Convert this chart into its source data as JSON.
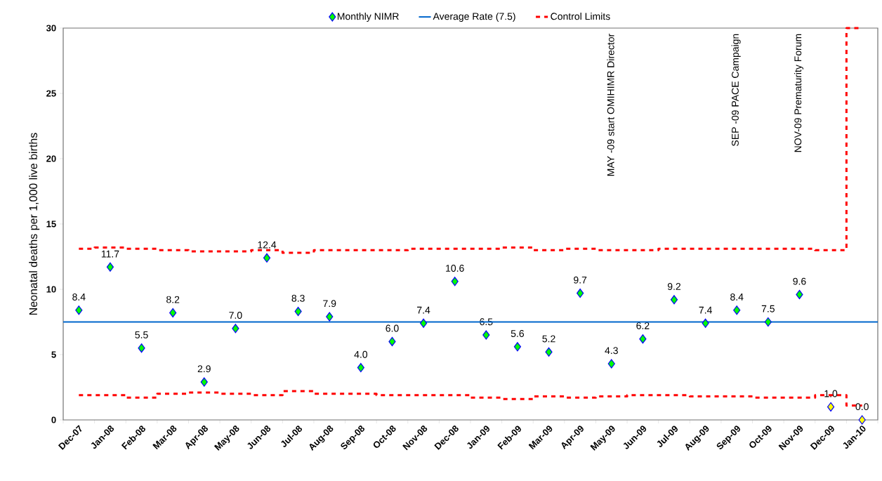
{
  "chart_data": {
    "type": "scatter",
    "ylabel": "Neonatal deaths per 1,000 live births",
    "categories": [
      "Dec-07",
      "Jan-08",
      "Feb-08",
      "Mar-08",
      "Apr-08",
      "May-08",
      "Jun-08",
      "Jul-08",
      "Aug-08",
      "Sep-08",
      "Oct-08",
      "Nov-08",
      "Dec-08",
      "Jan-09",
      "Feb-09",
      "Mar-09",
      "Apr-09",
      "May-09",
      "Jun-09",
      "Jul-09",
      "Aug-09",
      "Sep-09",
      "Oct-09",
      "Nov-09",
      "Dec-09",
      "Jan-10"
    ],
    "ylim": [
      0,
      30
    ],
    "yticks": [
      0,
      5,
      10,
      15,
      20,
      25,
      30
    ],
    "legend": "top",
    "series": [
      {
        "name": "Monthly NIMR",
        "marker": "diamond",
        "values": [
          8.4,
          11.7,
          5.5,
          8.2,
          2.9,
          7.0,
          12.4,
          8.3,
          7.9,
          4.0,
          6.0,
          7.4,
          10.6,
          6.5,
          5.6,
          5.2,
          9.7,
          4.3,
          6.2,
          9.2,
          7.4,
          8.4,
          7.5,
          9.6,
          1.0,
          0.0
        ],
        "value_labels": [
          "8.4",
          "11.7",
          "5.5",
          "8.2",
          "2.9",
          "7.0",
          "12.4",
          "8.3",
          "7.9",
          "4.0",
          "6.0",
          "7.4",
          "10.6",
          "6.5",
          "5.6",
          "5.2",
          "9.7",
          "4.3",
          "6.2",
          "9.2",
          "7.4",
          "8.4",
          "7.5",
          "9.6",
          "1.0",
          "0.0"
        ],
        "colors": [
          "#00ff00",
          "#00ff00",
          "#00ff00",
          "#00ff00",
          "#00ff00",
          "#00ff00",
          "#00ff00",
          "#00ff00",
          "#00ff00",
          "#00ff00",
          "#00ff00",
          "#00ff00",
          "#00ff00",
          "#00ff00",
          "#00ff00",
          "#00ff00",
          "#00ff00",
          "#00ff00",
          "#00ff00",
          "#00ff00",
          "#00ff00",
          "#00ff00",
          "#00ff00",
          "#00ff00",
          "#ffff00",
          "#ffff00"
        ]
      },
      {
        "name": "Control Limits",
        "type": "step",
        "color": "#ff0000",
        "line_style": "dashed",
        "values": [
          13.1,
          13.2,
          13.1,
          13.0,
          12.9,
          12.9,
          13.0,
          12.8,
          13.0,
          13.0,
          13.0,
          13.1,
          13.1,
          13.1,
          13.2,
          13.0,
          13.1,
          13.0,
          13.0,
          13.1,
          13.1,
          13.1,
          13.1,
          13.1,
          13.0,
          30
        ]
      },
      {
        "type": "step",
        "color": "#ff0000",
        "line_style": "dashed",
        "values": [
          1.9,
          1.9,
          1.7,
          2.0,
          2.1,
          2.0,
          1.9,
          2.2,
          2.0,
          2.0,
          1.9,
          1.9,
          1.9,
          1.7,
          1.6,
          1.8,
          1.7,
          1.8,
          1.9,
          1.9,
          1.8,
          1.8,
          1.7,
          1.7,
          1.9,
          1.1
        ]
      }
    ],
    "ref_lines": [
      {
        "axis": "y",
        "value": 7.5,
        "label": "Average Rate (7.5)",
        "color": "#0066cc"
      }
    ],
    "annotations": [
      "MAY -09 start OMIHIMR Director",
      "SEP -09 PACE Campaign",
      "NOV-09 Prematurity Forum"
    ]
  }
}
